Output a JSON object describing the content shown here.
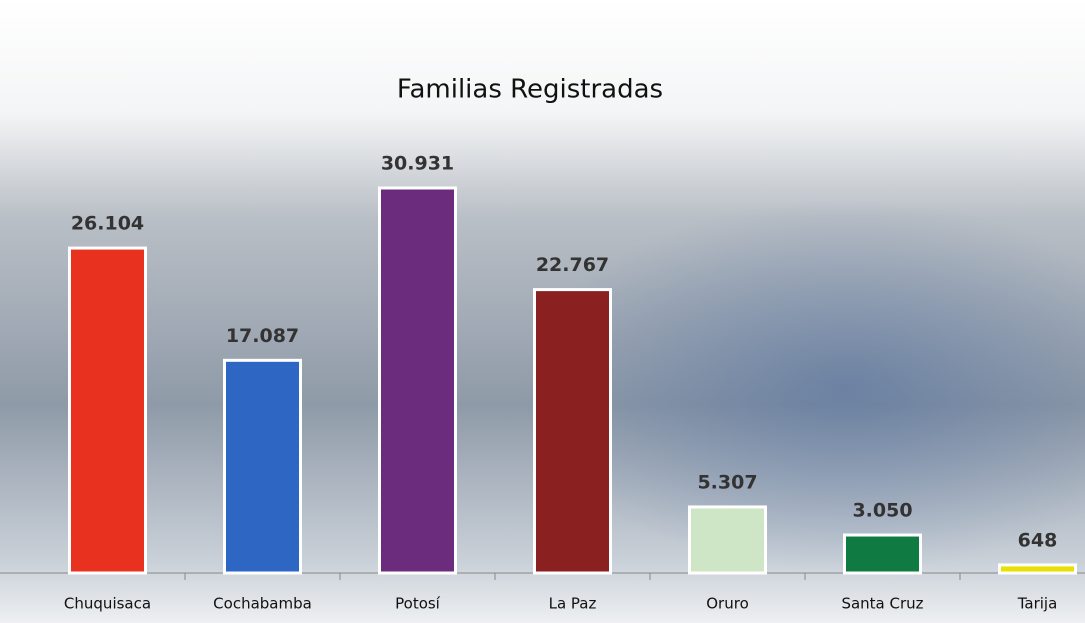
{
  "chart_data": {
    "type": "bar",
    "title": "Familias Registradas",
    "categories": [
      "Chuquisaca",
      "Cochabamba",
      "Potosí",
      "La Paz",
      "Oruro",
      "Santa Cruz",
      "Tarija"
    ],
    "values": [
      26104,
      17087,
      30931,
      22767,
      5307,
      3050,
      648
    ],
    "value_labels": [
      "26.104",
      "17.087",
      "30.931",
      "22.767",
      "5.307",
      "3.050",
      "648"
    ],
    "colors": [
      "#e8321f",
      "#2e66c4",
      "#6b2c7e",
      "#8b2020",
      "#cfe6c6",
      "#0f7a42",
      "#e8e000"
    ]
  }
}
